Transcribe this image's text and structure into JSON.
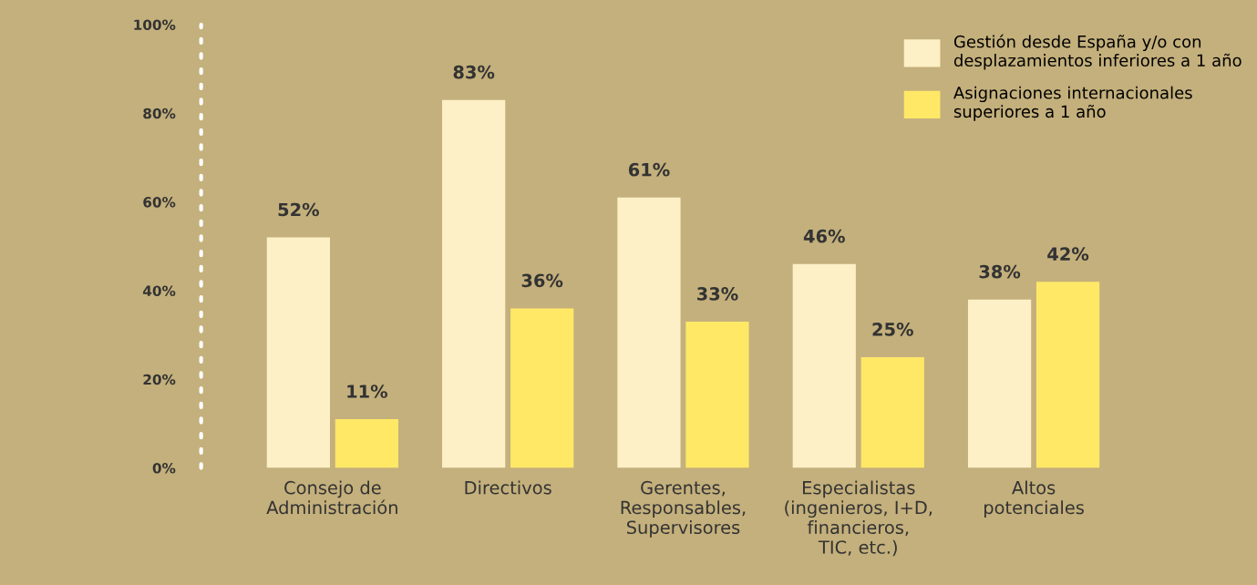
{
  "chart_data": {
    "type": "bar",
    "categories": [
      "Consejo de\nAdministración",
      "Directivos",
      "Gerentes,\nResponsables,\nSupervisores",
      "Especialistas\n(ingenieros, I+D,\nfinancieros,\nTIC, etc.)",
      "Altos\npotenciales"
    ],
    "series": [
      {
        "name": "Gestión desde España y/o con\ndesplazamientos inferiores a 1 año",
        "color": "#fdf0c6",
        "values": [
          52,
          83,
          61,
          46,
          38
        ],
        "value_labels": [
          "52%",
          "83%",
          "61%",
          "46%",
          "38%"
        ]
      },
      {
        "name": "Asignaciones internacionales\nsuperiores a 1 año",
        "color": "#ffe866",
        "values": [
          11,
          36,
          33,
          25,
          42
        ],
        "value_labels": [
          "11%",
          "36%",
          "33%",
          "25%",
          "42%"
        ]
      }
    ],
    "ylim": [
      0,
      100
    ],
    "yticks": [
      {
        "value": 0,
        "label": "0%"
      },
      {
        "value": 20,
        "label": "20%"
      },
      {
        "value": 40,
        "label": "40%"
      },
      {
        "value": 60,
        "label": "60%"
      },
      {
        "value": 80,
        "label": "80%"
      },
      {
        "value": 100,
        "label": "100%"
      }
    ],
    "grid": false,
    "legend": "top right"
  }
}
